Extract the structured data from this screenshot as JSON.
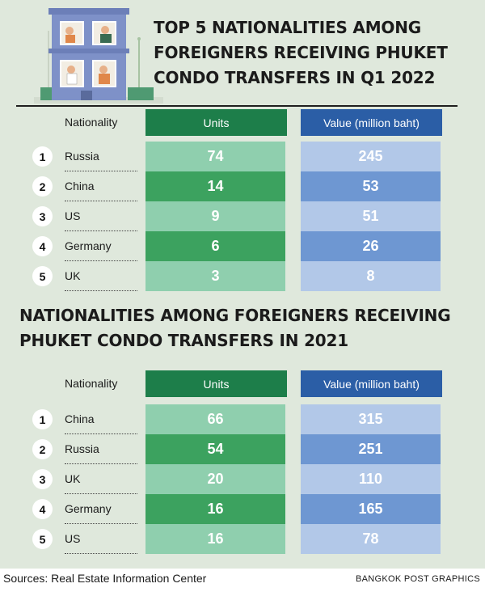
{
  "chart_data": [
    {
      "type": "table",
      "title": "TOP 5 NATIONALITIES AMONG\nFOREIGNERS RECEIVING PHUKET\nCONDO TRANSFERS IN Q1 2022",
      "columns": [
        "Nationality",
        "Units",
        "Value (million baht)"
      ],
      "rows": [
        {
          "rank": "1",
          "nationality": "Russia",
          "units": "74",
          "value": "245"
        },
        {
          "rank": "2",
          "nationality": "China",
          "units": "14",
          "value": "53"
        },
        {
          "rank": "3",
          "nationality": "US",
          "units": "9",
          "value": "51"
        },
        {
          "rank": "4",
          "nationality": "Germany",
          "units": "6",
          "value": "26"
        },
        {
          "rank": "5",
          "nationality": "UK",
          "units": "3",
          "value": "8"
        }
      ]
    },
    {
      "type": "table",
      "title": "NATIONALITIES AMONG FOREIGNERS RECEIVING\nPHUKET CONDO TRANSFERS IN 2021",
      "columns": [
        "Nationality",
        "Units",
        "Value (million baht)"
      ],
      "rows": [
        {
          "rank": "1",
          "nationality": "China",
          "units": "66",
          "value": "315"
        },
        {
          "rank": "2",
          "nationality": "Russia",
          "units": "54",
          "value": "251"
        },
        {
          "rank": "3",
          "nationality": "UK",
          "units": "20",
          "value": "110"
        },
        {
          "rank": "4",
          "nationality": "Germany",
          "units": "16",
          "value": "165"
        },
        {
          "rank": "5",
          "nationality": "US",
          "units": "16",
          "value": "78"
        }
      ]
    }
  ],
  "colors": {
    "units_light": "#8fcfae",
    "units_dark": "#3ca25f",
    "value_light": "#b2c8e8",
    "value_dark": "#6e97d2"
  },
  "footer": {
    "source": "Sources: Real Estate Information Center",
    "credit": "BANGKOK POST GRAPHICS"
  },
  "illustration": {
    "icon": "apartment-building-icon"
  }
}
